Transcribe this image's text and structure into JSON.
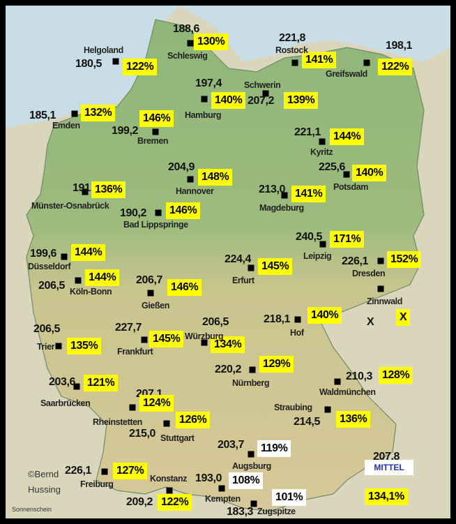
{
  "colors": {
    "highlight": "#ffff00",
    "white_box": "#ffffff",
    "mittel_text": "#2233aa"
  },
  "stations": [
    {
      "name": "Schleswig",
      "value": "188,6",
      "percent": "130%",
      "box": "yellow"
    },
    {
      "name": "Helgoland",
      "value": "180,5",
      "percent": "122%",
      "box": "yellow"
    },
    {
      "name": "Rostock",
      "value": "221,8",
      "percent": "141%",
      "box": "yellow"
    },
    {
      "name": "Greifswald",
      "value": "198,1",
      "percent": "122%",
      "box": "yellow"
    },
    {
      "name": "Hamburg",
      "value": "197,4",
      "percent": "140%",
      "box": "yellow"
    },
    {
      "name": "Schwerin",
      "value": "207,2",
      "percent": "139%",
      "box": "yellow"
    },
    {
      "name": "Emden",
      "value": "185,1",
      "percent": "132%",
      "box": "yellow"
    },
    {
      "name": "Bremen",
      "value": "199,2",
      "percent": "146%",
      "box": "yellow"
    },
    {
      "name": "Kyritz",
      "value": "221,1",
      "percent": "144%",
      "box": "yellow"
    },
    {
      "name": "Potsdam",
      "value": "225,6",
      "percent": "140%",
      "box": "yellow"
    },
    {
      "name": "Hannover",
      "value": "204,9",
      "percent": "148%",
      "box": "yellow"
    },
    {
      "name": "Münster-Osnabrück",
      "value": "191,9",
      "percent": "136%",
      "box": "yellow"
    },
    {
      "name": "Magdeburg",
      "value": "213,0",
      "percent": "141%",
      "box": "yellow"
    },
    {
      "name": "Bad Lippspringe",
      "value": "190,2",
      "percent": "146%",
      "box": "yellow"
    },
    {
      "name": "Leipzig",
      "value": "240,5",
      "percent": "171%",
      "box": "yellow"
    },
    {
      "name": "Düsseldorf",
      "value": "199,6",
      "percent": "144%",
      "box": "yellow"
    },
    {
      "name": "Dresden",
      "value": "226,1",
      "percent": "152%",
      "box": "yellow"
    },
    {
      "name": "Erfurt",
      "value": "224,4",
      "percent": "145%",
      "box": "yellow"
    },
    {
      "name": "Köln-Bonn",
      "value": "206,5",
      "percent": "144%",
      "box": "yellow"
    },
    {
      "name": "Gießen",
      "value": "206,7",
      "percent": "146%",
      "box": "yellow"
    },
    {
      "name": "Zinnwald",
      "value": "X",
      "percent": "X",
      "box": "yellow"
    },
    {
      "name": "Hof",
      "value": "218,1",
      "percent": "140%",
      "box": "yellow"
    },
    {
      "name": "Trier",
      "value": "206,5",
      "percent": "135%",
      "box": "yellow"
    },
    {
      "name": "Frankfurt",
      "value": "227,7",
      "percent": "145%",
      "box": "yellow"
    },
    {
      "name": "Würzburg",
      "value": "206,5",
      "percent": "134%",
      "box": "yellow"
    },
    {
      "name": "Nürnberg",
      "value": "220,2",
      "percent": "129%",
      "box": "yellow"
    },
    {
      "name": "Waldmünchen",
      "value": "210,3",
      "percent": "128%",
      "box": "yellow"
    },
    {
      "name": "Saarbrücken",
      "value": "203,6",
      "percent": "121%",
      "box": "yellow"
    },
    {
      "name": "Rheinstetten",
      "value": "207,1",
      "percent": "124%",
      "box": "yellow"
    },
    {
      "name": "Straubing",
      "value": "214,5",
      "percent": "136%",
      "box": "yellow"
    },
    {
      "name": "Stuttgart",
      "value": "215,0",
      "percent": "126%",
      "box": "yellow"
    },
    {
      "name": "Augsburg",
      "value": "203,7",
      "percent": "119%",
      "box": "white"
    },
    {
      "name": "Freiburg",
      "value": "226,1",
      "percent": "127%",
      "box": "yellow"
    },
    {
      "name": "Konstanz",
      "value": "209,2",
      "percent": "122%",
      "box": "yellow"
    },
    {
      "name": "Kempten",
      "value": "193,0",
      "percent": "108%",
      "box": "white"
    },
    {
      "name": "Zugspitze",
      "value": "183,3",
      "percent": "101%",
      "box": "white"
    }
  ],
  "mean": {
    "value": "207,8",
    "label": "MITTEL",
    "percent": "134,1%"
  },
  "credit": {
    "line1": "©Bernd",
    "line2": "Hussing",
    "parameter": "Sonnenschein"
  }
}
